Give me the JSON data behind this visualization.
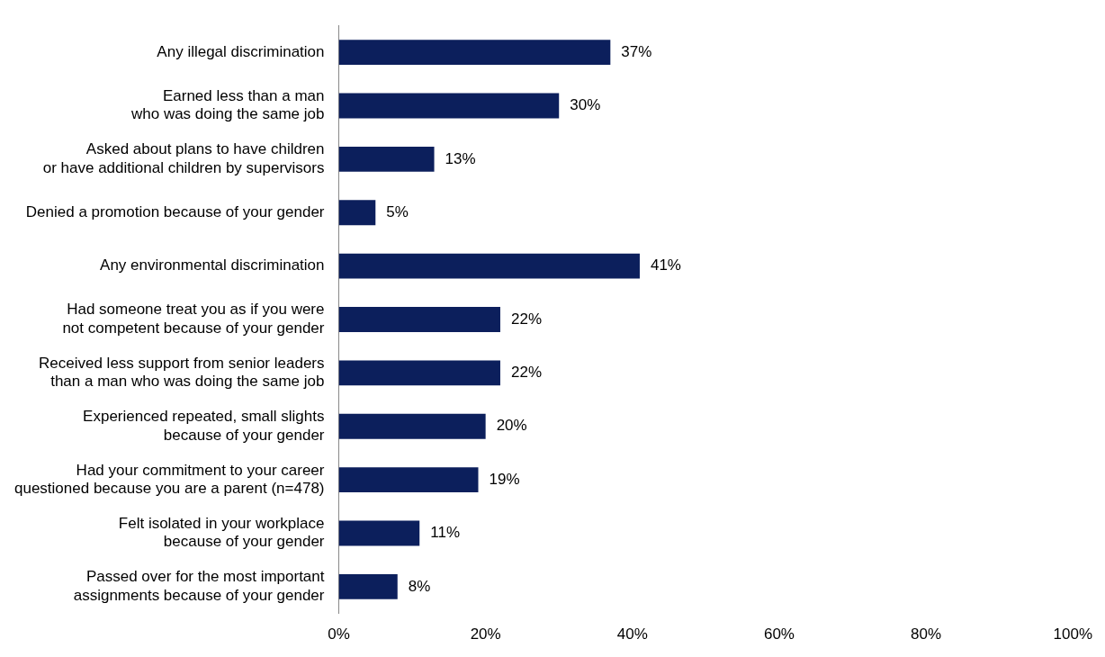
{
  "chart_data": {
    "type": "bar",
    "orientation": "horizontal",
    "categories": [
      "Any illegal discrimination",
      "Earned less than a man\nwho was doing the same job",
      "Asked about plans to have children\nor have additional children by supervisors",
      "Denied a promotion because of your gender",
      "Any environmental discrimination",
      "Had someone treat you as if you were\nnot competent because of your gender",
      "Received less support from senior leaders\nthan a man who was doing the same job",
      "Experienced repeated, small slights\nbecause of your gender",
      "Had your commitment to your career\nquestioned because you are a parent (n=478)",
      "Felt isolated in your workplace\nbecause of your gender",
      "Passed over for the most important\nassignments because of your gender"
    ],
    "values": [
      37,
      30,
      13,
      5,
      41,
      22,
      22,
      20,
      19,
      11,
      8
    ],
    "value_labels": [
      "37%",
      "30%",
      "13%",
      "5%",
      "41%",
      "22%",
      "22%",
      "20%",
      "19%",
      "11%",
      "8%"
    ],
    "color": "#0c1f5c",
    "xlim": [
      0,
      100
    ],
    "xticks": [
      {
        "value": 0,
        "label": "0%"
      },
      {
        "value": 20,
        "label": "20%"
      },
      {
        "value": 40,
        "label": "40%"
      },
      {
        "value": 60,
        "label": "60%"
      },
      {
        "value": 80,
        "label": "80%"
      },
      {
        "value": 100,
        "label": "100%"
      }
    ],
    "grid": false,
    "legend": false
  }
}
